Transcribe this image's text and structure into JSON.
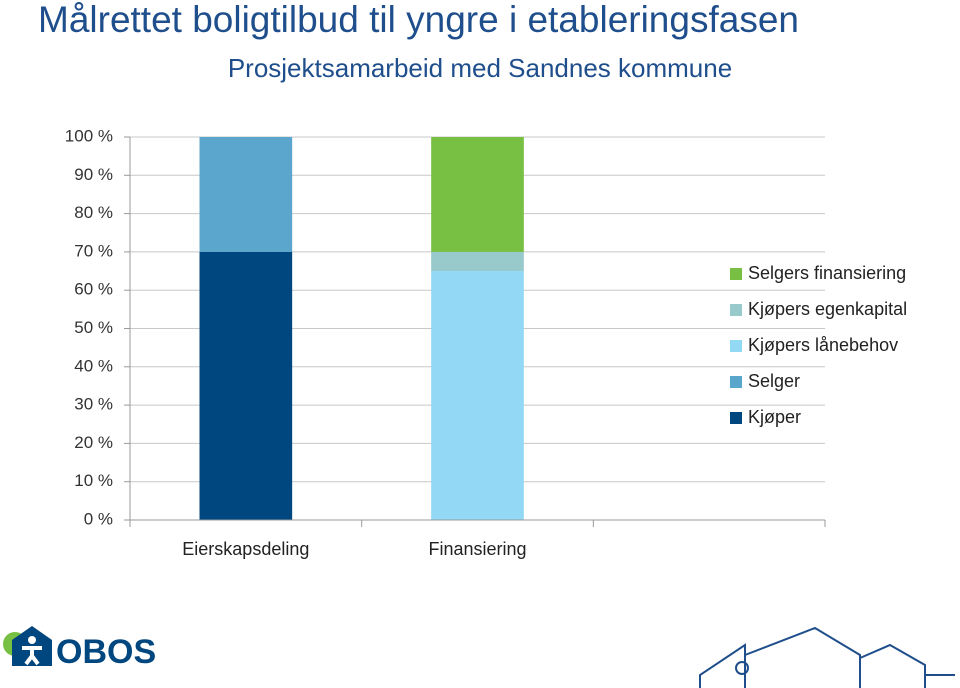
{
  "title": "Målrettet boligtilbud til yngre i etableringsfasen",
  "subtitle": "Prosjektsamarbeid med Sandnes kommune",
  "logo": "OBOS",
  "chart_data": {
    "type": "stacked_bar",
    "categories": [
      "Eierskapsdeling",
      "Finansiering",
      null
    ],
    "series": [
      {
        "name": "Kjøper",
        "color": "#00467f",
        "values": [
          70,
          null,
          null
        ]
      },
      {
        "name": "Selger",
        "color": "#5ba6cc",
        "values": [
          30,
          null,
          null
        ]
      },
      {
        "name": "Kjøpers lånebehov",
        "color": "#93d8f5",
        "values": [
          null,
          65,
          null
        ]
      },
      {
        "name": "Kjøpers egenkapital",
        "color": "#98c9cb",
        "values": [
          null,
          5,
          null
        ]
      },
      {
        "name": "Selgers finansiering",
        "color": "#77c043",
        "values": [
          null,
          30,
          null
        ]
      }
    ],
    "ylim": [
      0,
      100
    ],
    "yticks": [
      {
        "value": 0,
        "label": "0 %"
      },
      {
        "value": 10,
        "label": "10 %"
      },
      {
        "value": 20,
        "label": "20 %"
      },
      {
        "value": 30,
        "label": "30 %"
      },
      {
        "value": 40,
        "label": "40 %"
      },
      {
        "value": 50,
        "label": "50 %"
      },
      {
        "value": 60,
        "label": "60 %"
      },
      {
        "value": 70,
        "label": "70 %"
      },
      {
        "value": 80,
        "label": "80 %"
      },
      {
        "value": 90,
        "label": "90 %"
      },
      {
        "value": 100,
        "label": "100 %"
      }
    ],
    "grid": true,
    "legend": "right"
  }
}
